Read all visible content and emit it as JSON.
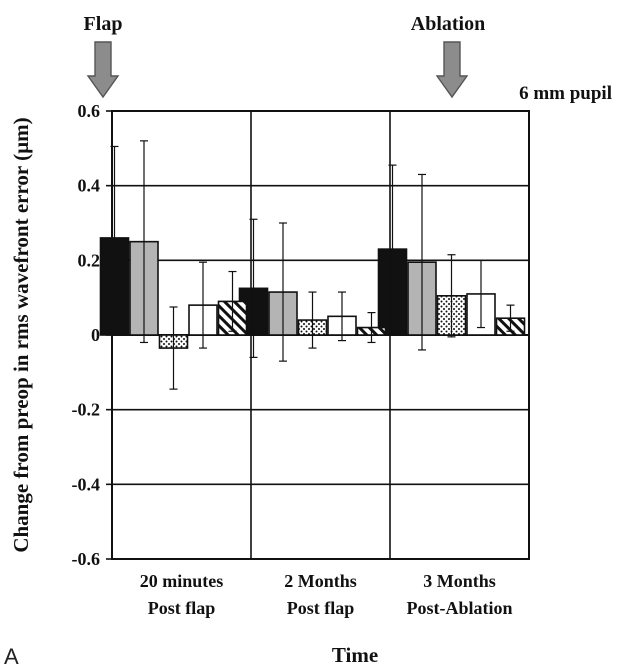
{
  "chart_data": {
    "type": "bar",
    "title": "",
    "panel_label": "A",
    "pupil_label": "6 mm pupil",
    "xlabel": "Time",
    "ylabel": "Change from preop in rms wavefront error (µm)",
    "ylim": [
      -0.6,
      0.6
    ],
    "yticks": [
      "0.6",
      "0.4",
      "0.2",
      "0",
      "-0.2",
      "-0.4",
      "-0.6"
    ],
    "grid": true,
    "categories": [
      {
        "line1": "20 minutes",
        "line2": "Post flap"
      },
      {
        "line1": "2 Months",
        "line2": "Post flap"
      },
      {
        "line1": "3 Months",
        "line2": "Post-Ablation"
      }
    ],
    "series": [
      {
        "pattern": "black",
        "values": [
          0.26,
          0.125,
          0.23
        ],
        "errors": [
          0.245,
          0.185,
          0.225
        ]
      },
      {
        "pattern": "gray",
        "values": [
          0.25,
          0.115,
          0.195
        ],
        "errors": [
          0.27,
          0.185,
          0.235
        ]
      },
      {
        "pattern": "dotted",
        "values": [
          -0.035,
          0.04,
          0.105
        ],
        "errors": [
          0.11,
          0.075,
          0.11
        ]
      },
      {
        "pattern": "white",
        "values": [
          0.08,
          0.05,
          0.11
        ],
        "errors": [
          0.115,
          0.065,
          0.09
        ]
      },
      {
        "pattern": "hatched",
        "values": [
          0.09,
          0.02,
          0.045
        ],
        "errors": [
          0.08,
          0.04,
          0.035
        ]
      }
    ],
    "annotations": [
      {
        "label": "Flap",
        "position": "start of first interval"
      },
      {
        "label": "Ablation",
        "position": "end of second interval"
      }
    ]
  },
  "colors": {
    "black_bar": "#111111",
    "gray_bar": "#b4b4b4",
    "arrow": "#8c8c8c",
    "arrow_edge": "#555555"
  }
}
